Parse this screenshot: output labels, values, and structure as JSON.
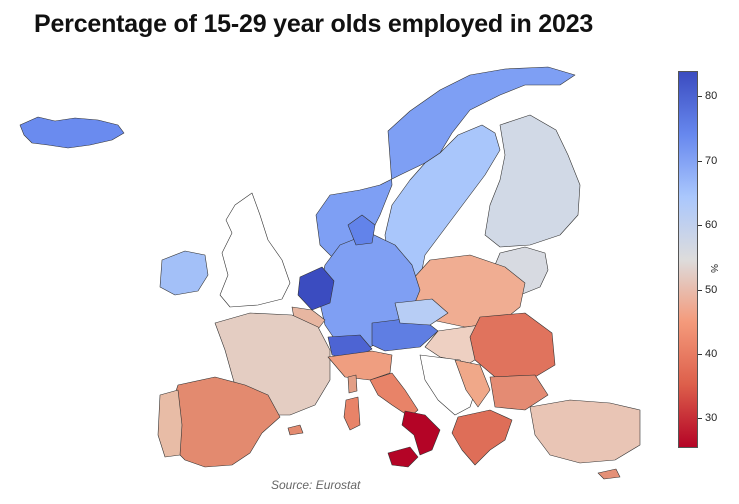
{
  "title": "Percentage of 15-29 year olds employed in 2023",
  "source": "Source: Eurostat",
  "colorbar": {
    "unit": "%",
    "ticks": [
      "80",
      "70",
      "60",
      "50",
      "40",
      "30"
    ],
    "range": [
      20,
      84
    ],
    "colors": [
      "#b40426",
      "#dd5f4b",
      "#f49a7b",
      "#dddcdc",
      "#aac7fd",
      "#6788ee",
      "#3b4cc0"
    ]
  },
  "legend_colors": {
    "very_high": "#3b4cc0",
    "high": "#6a8bef",
    "mid_high": "#9dbdfc",
    "neutral": "#d3d8e0",
    "mid_low": "#f2c3ad",
    "low": "#e8836a",
    "very_low": "#c0282f",
    "no_data": "#ffffff"
  }
}
